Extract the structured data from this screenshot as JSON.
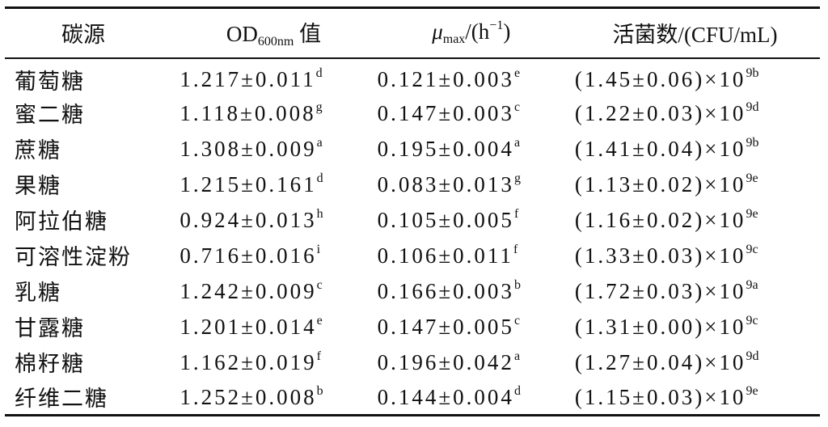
{
  "header": {
    "source": "碳源",
    "od": {
      "text": "OD",
      "sub": "600nm",
      "after": " 值"
    },
    "mu": {
      "text": "μ",
      "sub": "max",
      "mid": "/(h",
      "sup": "−1",
      "after": ")"
    },
    "cfu": "活菌数/(CFU/mL)"
  },
  "rows": [
    {
      "source": "葡萄糖",
      "od": "1.217±0.011",
      "od_sig": "d",
      "mu": "0.121±0.003",
      "mu_sig": "e",
      "cfu": "(1.45±0.06)×10",
      "cfu_sup": "9b"
    },
    {
      "source": "蜜二糖",
      "od": "1.118±0.008",
      "od_sig": "g",
      "mu": "0.147±0.003",
      "mu_sig": "c",
      "cfu": "(1.22±0.03)×10",
      "cfu_sup": "9d"
    },
    {
      "source": "蔗糖",
      "od": "1.308±0.009",
      "od_sig": "a",
      "mu": "0.195±0.004",
      "mu_sig": "a",
      "cfu": "(1.41±0.04)×10",
      "cfu_sup": "9b"
    },
    {
      "source": "果糖",
      "od": "1.215±0.161",
      "od_sig": "d",
      "mu": "0.083±0.013",
      "mu_sig": "g",
      "cfu": "(1.13±0.02)×10",
      "cfu_sup": "9e"
    },
    {
      "source": "阿拉伯糖",
      "od": "0.924±0.013",
      "od_sig": "h",
      "mu": "0.105±0.005",
      "mu_sig": "f",
      "cfu": "(1.16±0.02)×10",
      "cfu_sup": "9e"
    },
    {
      "source": "可溶性淀粉",
      "od": "0.716±0.016",
      "od_sig": "i",
      "mu": "0.106±0.011",
      "mu_sig": "f",
      "cfu": "(1.33±0.03)×10",
      "cfu_sup": "9c"
    },
    {
      "source": "乳糖",
      "od": "1.242±0.009",
      "od_sig": "c",
      "mu": "0.166±0.003",
      "mu_sig": "b",
      "cfu": "(1.72±0.03)×10",
      "cfu_sup": "9a"
    },
    {
      "source": "甘露糖",
      "od": "1.201±0.014",
      "od_sig": "e",
      "mu": "0.147±0.005",
      "mu_sig": "c",
      "cfu": "(1.31±0.00)×10",
      "cfu_sup": "9c"
    },
    {
      "source": "棉籽糖",
      "od": "1.162±0.019",
      "od_sig": "f",
      "mu": "0.196±0.042",
      "mu_sig": "a",
      "cfu": "(1.27±0.04)×10",
      "cfu_sup": "9d"
    },
    {
      "source": "纤维二糖",
      "od": "1.252±0.008",
      "od_sig": "b",
      "mu": "0.144±0.004",
      "mu_sig": "d",
      "cfu": "(1.15±0.03)×10",
      "cfu_sup": "9e"
    }
  ]
}
